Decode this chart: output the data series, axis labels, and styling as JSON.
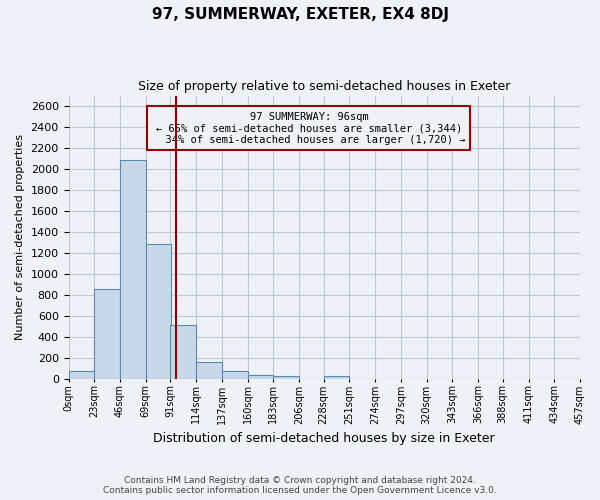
{
  "title": "97, SUMMERWAY, EXETER, EX4 8DJ",
  "subtitle": "Size of property relative to semi-detached houses in Exeter",
  "xlabel": "Distribution of semi-detached houses by size in Exeter",
  "ylabel": "Number of semi-detached properties",
  "property_size": 96,
  "property_label": "97 SUMMERWAY: 96sqm",
  "pct_smaller": 65,
  "pct_larger": 34,
  "n_smaller": 3344,
  "n_larger": 1720,
  "bar_left_edges": [
    0,
    23,
    46,
    69,
    91,
    114,
    137,
    160,
    183,
    206,
    228,
    251,
    274,
    297,
    320,
    343,
    366,
    388,
    411,
    434
  ],
  "bar_heights": [
    75,
    860,
    2090,
    1280,
    510,
    160,
    75,
    35,
    25,
    0,
    25,
    0,
    0,
    0,
    0,
    0,
    0,
    0,
    0,
    0
  ],
  "bin_width": 23,
  "tick_labels": [
    "0sqm",
    "23sqm",
    "46sqm",
    "69sqm",
    "91sqm",
    "114sqm",
    "137sqm",
    "160sqm",
    "183sqm",
    "206sqm",
    "228sqm",
    "251sqm",
    "274sqm",
    "297sqm",
    "320sqm",
    "343sqm",
    "366sqm",
    "388sqm",
    "411sqm",
    "434sqm",
    "457sqm"
  ],
  "bar_color": "#c8d8e8",
  "bar_edge_color": "#5a8ab0",
  "vline_x": 96,
  "vline_color": "#8b0000",
  "box_color": "#8b0000",
  "ylim": [
    0,
    2700
  ],
  "yticks": [
    0,
    200,
    400,
    600,
    800,
    1000,
    1200,
    1400,
    1600,
    1800,
    2000,
    2200,
    2400,
    2600
  ],
  "grid_color": "#c0c8d0",
  "background_color": "#eef2f7",
  "footer_line1": "Contains HM Land Registry data © Crown copyright and database right 2024.",
  "footer_line2": "Contains public sector information licensed under the Open Government Licence v3.0."
}
